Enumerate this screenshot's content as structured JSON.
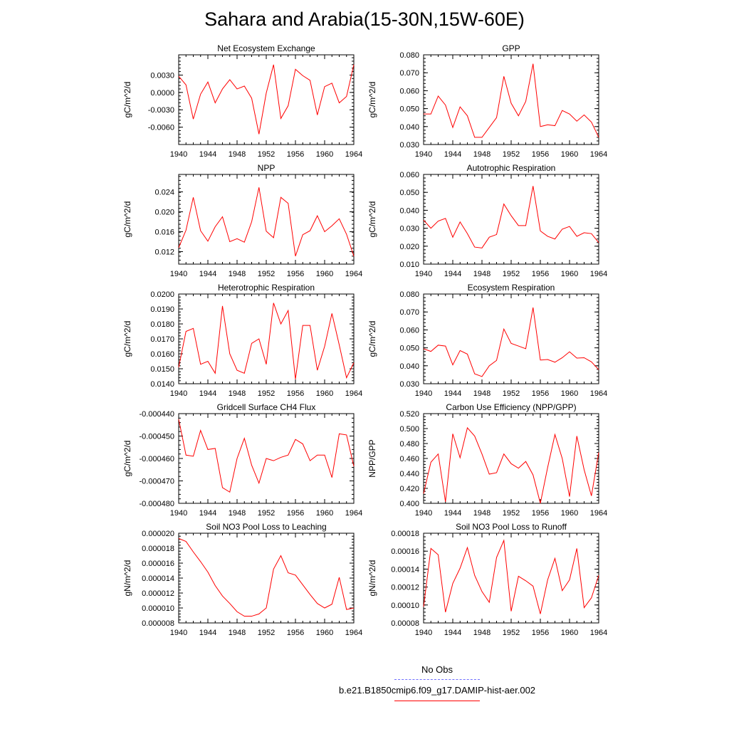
{
  "title": "Sahara and Arabia(15-30N,15W-60E)",
  "line_color": "#ff0000",
  "obs_color": "#6f6fff",
  "legend": [
    {
      "label": "No Obs",
      "style": "dashed",
      "color": "#6f6fff"
    },
    {
      "label": "b.e21.B1850cmip6.f09_g17.DAMIP-hist-aer.002",
      "style": "solid",
      "color": "#ff0000"
    }
  ],
  "chart_data": [
    {
      "type": "line",
      "title": "Net Ecosystem Exchange",
      "ylabel": "gC/m^2/d",
      "xlim": [
        1940,
        1964
      ],
      "xticks": [
        1940,
        1944,
        1948,
        1952,
        1956,
        1960,
        1964
      ],
      "ylim": [
        -0.009,
        0.0065
      ],
      "yticks": [
        -0.006,
        -0.003,
        0.0,
        0.003
      ],
      "ytick_labels": [
        "-0.0060",
        "-0.0030",
        "0.0000",
        "0.0030"
      ],
      "x": [
        1940,
        1941,
        1942,
        1943,
        1944,
        1945,
        1946,
        1947,
        1948,
        1949,
        1950,
        1951,
        1952,
        1953,
        1954,
        1955,
        1956,
        1957,
        1958,
        1959,
        1960,
        1961,
        1962,
        1963,
        1964
      ],
      "values": [
        0.0028,
        0.0013,
        -0.0046,
        -0.0003,
        0.0018,
        -0.0018,
        0.0006,
        0.0022,
        0.0006,
        0.0011,
        -0.001,
        -0.0072,
        -0.0001,
        0.0048,
        -0.0045,
        -0.0023,
        0.004,
        0.0029,
        0.0021,
        -0.0039,
        0.001,
        0.0016,
        -0.0018,
        -0.0007,
        0.0048
      ]
    },
    {
      "type": "line",
      "title": "GPP",
      "ylabel": "gC/m^2/d",
      "xlim": [
        1940,
        1964
      ],
      "xticks": [
        1940,
        1944,
        1948,
        1952,
        1956,
        1960,
        1964
      ],
      "ylim": [
        0.03,
        0.08
      ],
      "yticks": [
        0.03,
        0.04,
        0.05,
        0.06,
        0.07,
        0.08
      ],
      "ytick_labels": [
        "0.030",
        "0.040",
        "0.050",
        "0.060",
        "0.070",
        "0.080"
      ],
      "x": [
        1940,
        1941,
        1942,
        1943,
        1944,
        1945,
        1946,
        1947,
        1948,
        1949,
        1950,
        1951,
        1952,
        1953,
        1954,
        1955,
        1956,
        1957,
        1958,
        1959,
        1960,
        1961,
        1962,
        1963,
        1964
      ],
      "values": [
        0.047,
        0.047,
        0.057,
        0.052,
        0.0395,
        0.051,
        0.046,
        0.034,
        0.034,
        0.0395,
        0.045,
        0.068,
        0.053,
        0.046,
        0.054,
        0.075,
        0.04,
        0.041,
        0.0405,
        0.049,
        0.047,
        0.043,
        0.0465,
        0.0425,
        0.034
      ]
    },
    {
      "type": "line",
      "title": "NPP",
      "ylabel": "gC/m^2/d",
      "xlim": [
        1940,
        1964
      ],
      "xticks": [
        1940,
        1944,
        1948,
        1952,
        1956,
        1960,
        1964
      ],
      "ylim": [
        0.0095,
        0.0275
      ],
      "yticks": [
        0.012,
        0.016,
        0.02,
        0.024
      ],
      "ytick_labels": [
        "0.012",
        "0.016",
        "0.020",
        "0.024"
      ],
      "x": [
        1940,
        1941,
        1942,
        1943,
        1944,
        1945,
        1946,
        1947,
        1948,
        1949,
        1950,
        1951,
        1952,
        1953,
        1954,
        1955,
        1956,
        1957,
        1958,
        1959,
        1960,
        1961,
        1962,
        1963,
        1964
      ],
      "values": [
        0.0128,
        0.0163,
        0.0229,
        0.0162,
        0.0141,
        0.017,
        0.019,
        0.014,
        0.0146,
        0.0139,
        0.018,
        0.0249,
        0.0161,
        0.0148,
        0.0229,
        0.0217,
        0.0111,
        0.0154,
        0.0162,
        0.0192,
        0.016,
        0.0172,
        0.0186,
        0.0155,
        0.0111
      ]
    },
    {
      "type": "line",
      "title": "Autotrophic Respiration",
      "ylabel": "gC/m^2/d",
      "xlim": [
        1940,
        1964
      ],
      "xticks": [
        1940,
        1944,
        1948,
        1952,
        1956,
        1960,
        1964
      ],
      "ylim": [
        0.01,
        0.06
      ],
      "yticks": [
        0.01,
        0.02,
        0.03,
        0.04,
        0.05,
        0.06
      ],
      "ytick_labels": [
        "0.010",
        "0.020",
        "0.030",
        "0.040",
        "0.050",
        "0.060"
      ],
      "x": [
        1940,
        1941,
        1942,
        1943,
        1944,
        1945,
        1946,
        1947,
        1948,
        1949,
        1950,
        1951,
        1952,
        1953,
        1954,
        1955,
        1956,
        1957,
        1958,
        1959,
        1960,
        1961,
        1962,
        1963,
        1964
      ],
      "values": [
        0.0345,
        0.03,
        0.034,
        0.0355,
        0.025,
        0.0335,
        0.027,
        0.0195,
        0.019,
        0.025,
        0.0265,
        0.0435,
        0.037,
        0.0315,
        0.0315,
        0.0535,
        0.0285,
        0.0255,
        0.024,
        0.0295,
        0.031,
        0.0255,
        0.0275,
        0.027,
        0.022
      ]
    },
    {
      "type": "line",
      "title": "Heterotrophic Respiration",
      "ylabel": "gC/m^2/d",
      "xlim": [
        1940,
        1964
      ],
      "xticks": [
        1940,
        1944,
        1948,
        1952,
        1956,
        1960,
        1964
      ],
      "ylim": [
        0.014,
        0.02
      ],
      "yticks": [
        0.014,
        0.015,
        0.016,
        0.017,
        0.018,
        0.019,
        0.02
      ],
      "ytick_labels": [
        "0.0140",
        "0.0150",
        "0.0160",
        "0.0170",
        "0.0180",
        "0.0190",
        "0.0200"
      ],
      "x": [
        1940,
        1941,
        1942,
        1943,
        1944,
        1945,
        1946,
        1947,
        1948,
        1949,
        1950,
        1951,
        1952,
        1953,
        1954,
        1955,
        1956,
        1957,
        1958,
        1959,
        1960,
        1961,
        1962,
        1963,
        1964
      ],
      "values": [
        0.0151,
        0.0175,
        0.0177,
        0.0153,
        0.0155,
        0.0147,
        0.0192,
        0.016,
        0.0149,
        0.0147,
        0.0167,
        0.017,
        0.0153,
        0.0194,
        0.018,
        0.0189,
        0.0143,
        0.0179,
        0.0179,
        0.0149,
        0.0165,
        0.0187,
        0.0166,
        0.0144,
        0.0154
      ]
    },
    {
      "type": "line",
      "title": "Ecosystem Respiration",
      "ylabel": "gC/m^2/d",
      "xlim": [
        1940,
        1964
      ],
      "xticks": [
        1940,
        1944,
        1948,
        1952,
        1956,
        1960,
        1964
      ],
      "ylim": [
        0.03,
        0.08
      ],
      "yticks": [
        0.03,
        0.04,
        0.05,
        0.06,
        0.07,
        0.08
      ],
      "ytick_labels": [
        "0.030",
        "0.040",
        "0.050",
        "0.060",
        "0.070",
        "0.080"
      ],
      "x": [
        1940,
        1941,
        1942,
        1943,
        1944,
        1945,
        1946,
        1947,
        1948,
        1949,
        1950,
        1951,
        1952,
        1953,
        1954,
        1955,
        1956,
        1957,
        1958,
        1959,
        1960,
        1961,
        1962,
        1963,
        1964
      ],
      "values": [
        0.0495,
        0.048,
        0.0515,
        0.051,
        0.0405,
        0.0485,
        0.0465,
        0.0355,
        0.034,
        0.04,
        0.043,
        0.0605,
        0.0525,
        0.051,
        0.0495,
        0.0725,
        0.0432,
        0.0435,
        0.042,
        0.0445,
        0.0478,
        0.0443,
        0.0445,
        0.0422,
        0.0378
      ]
    },
    {
      "type": "line",
      "title": "Gridcell Surface CH4 Flux",
      "ylabel": "gC/m^2/d",
      "xlim": [
        1940,
        1964
      ],
      "xticks": [
        1940,
        1944,
        1948,
        1952,
        1956,
        1960,
        1964
      ],
      "ylim": [
        -0.00048,
        -0.00044
      ],
      "yticks": [
        -0.00048,
        -0.00047,
        -0.00046,
        -0.00045,
        -0.00044
      ],
      "ytick_labels": [
        "-0.000480",
        "-0.000470",
        "-0.000460",
        "-0.000450",
        "-0.000440"
      ],
      "x": [
        1940,
        1941,
        1942,
        1943,
        1944,
        1945,
        1946,
        1947,
        1948,
        1949,
        1950,
        1951,
        1952,
        1953,
        1954,
        1955,
        1956,
        1957,
        1958,
        1959,
        1960,
        1961,
        1962,
        1963,
        1964
      ],
      "values": [
        -0.0004425,
        -0.0004585,
        -0.000459,
        -0.0004475,
        -0.000456,
        -0.0004555,
        -0.000473,
        -0.000475,
        -0.00046,
        -0.000451,
        -0.000463,
        -0.000471,
        -0.00046,
        -0.000461,
        -0.0004595,
        -0.0004585,
        -0.0004515,
        -0.0004535,
        -0.000461,
        -0.0004585,
        -0.0004585,
        -0.0004685,
        -0.000449,
        -0.0004495,
        -0.0004635
      ]
    },
    {
      "type": "line",
      "title": "Carbon Use Efficiency (NPP/GPP)",
      "ylabel": "NPP/GPP",
      "xlim": [
        1940,
        1964
      ],
      "xticks": [
        1940,
        1944,
        1948,
        1952,
        1956,
        1960,
        1964
      ],
      "ylim": [
        0.4,
        0.52
      ],
      "yticks": [
        0.4,
        0.42,
        0.44,
        0.46,
        0.48,
        0.5,
        0.52
      ],
      "ytick_labels": [
        "0.400",
        "0.420",
        "0.440",
        "0.460",
        "0.480",
        "0.500",
        "0.520"
      ],
      "x": [
        1940,
        1941,
        1942,
        1943,
        1944,
        1945,
        1946,
        1947,
        1948,
        1949,
        1950,
        1951,
        1952,
        1953,
        1954,
        1955,
        1956,
        1957,
        1958,
        1959,
        1960,
        1961,
        1962,
        1963,
        1964
      ],
      "values": [
        0.413,
        0.455,
        0.466,
        0.402,
        0.493,
        0.461,
        0.501,
        0.49,
        0.466,
        0.439,
        0.441,
        0.466,
        0.453,
        0.447,
        0.456,
        0.438,
        0.4,
        0.448,
        0.492,
        0.46,
        0.409,
        0.49,
        0.445,
        0.41,
        0.468
      ]
    },
    {
      "type": "line",
      "title": "Soil NO3 Pool Loss to Leaching",
      "ylabel": "gN/m^2/d",
      "xlim": [
        1940,
        1964
      ],
      "xticks": [
        1940,
        1944,
        1948,
        1952,
        1956,
        1960,
        1964
      ],
      "ylim": [
        8e-06,
        2e-05
      ],
      "yticks": [
        8e-06,
        1e-05,
        1.2e-05,
        1.4e-05,
        1.6e-05,
        1.8e-05,
        2e-05
      ],
      "ytick_labels": [
        "0.000008",
        "0.000010",
        "0.000012",
        "0.000014",
        "0.000016",
        "0.000018",
        "0.000020"
      ],
      "x": [
        1940,
        1941,
        1942,
        1943,
        1944,
        1945,
        1946,
        1947,
        1948,
        1949,
        1950,
        1951,
        1952,
        1953,
        1954,
        1955,
        1956,
        1957,
        1958,
        1959,
        1960,
        1961,
        1962,
        1963,
        1964
      ],
      "values": [
        1.93e-05,
        1.89e-05,
        1.75e-05,
        1.62e-05,
        1.48e-05,
        1.3e-05,
        1.16e-05,
        1.06e-05,
        9.5e-06,
        8.9e-06,
        8.9e-06,
        9.2e-06,
        1e-05,
        1.52e-05,
        1.7e-05,
        1.47e-05,
        1.44e-05,
        1.31e-05,
        1.18e-05,
        1.06e-05,
        1e-05,
        1.05e-05,
        1.41e-05,
        9.8e-06,
        1e-05
      ]
    },
    {
      "type": "line",
      "title": "Soil NO3 Pool Loss to Runoff",
      "ylabel": "gN/m^2/d",
      "xlim": [
        1940,
        1964
      ],
      "xticks": [
        1940,
        1944,
        1948,
        1952,
        1956,
        1960,
        1964
      ],
      "ylim": [
        8e-05,
        0.00018
      ],
      "yticks": [
        8e-05,
        0.0001,
        0.00012,
        0.00014,
        0.00016,
        0.00018
      ],
      "ytick_labels": [
        "0.00008",
        "0.00010",
        "0.00012",
        "0.00014",
        "0.00016",
        "0.00018"
      ],
      "x": [
        1940,
        1941,
        1942,
        1943,
        1944,
        1945,
        1946,
        1947,
        1948,
        1949,
        1950,
        1951,
        1952,
        1953,
        1954,
        1955,
        1956,
        1957,
        1958,
        1959,
        1960,
        1961,
        1962,
        1963,
        1964
      ],
      "values": [
        9.8e-05,
        0.000163,
        0.000156,
        9.2e-05,
        0.000124,
        0.000141,
        0.000164,
        0.000133,
        0.000115,
        0.000103,
        0.000153,
        0.000172,
        9.3e-05,
        0.000132,
        0.000127,
        0.000121,
        9e-05,
        0.000128,
        0.000152,
        0.000116,
        0.000128,
        0.000163,
        9.7e-05,
        0.000108,
        0.000133
      ]
    }
  ]
}
